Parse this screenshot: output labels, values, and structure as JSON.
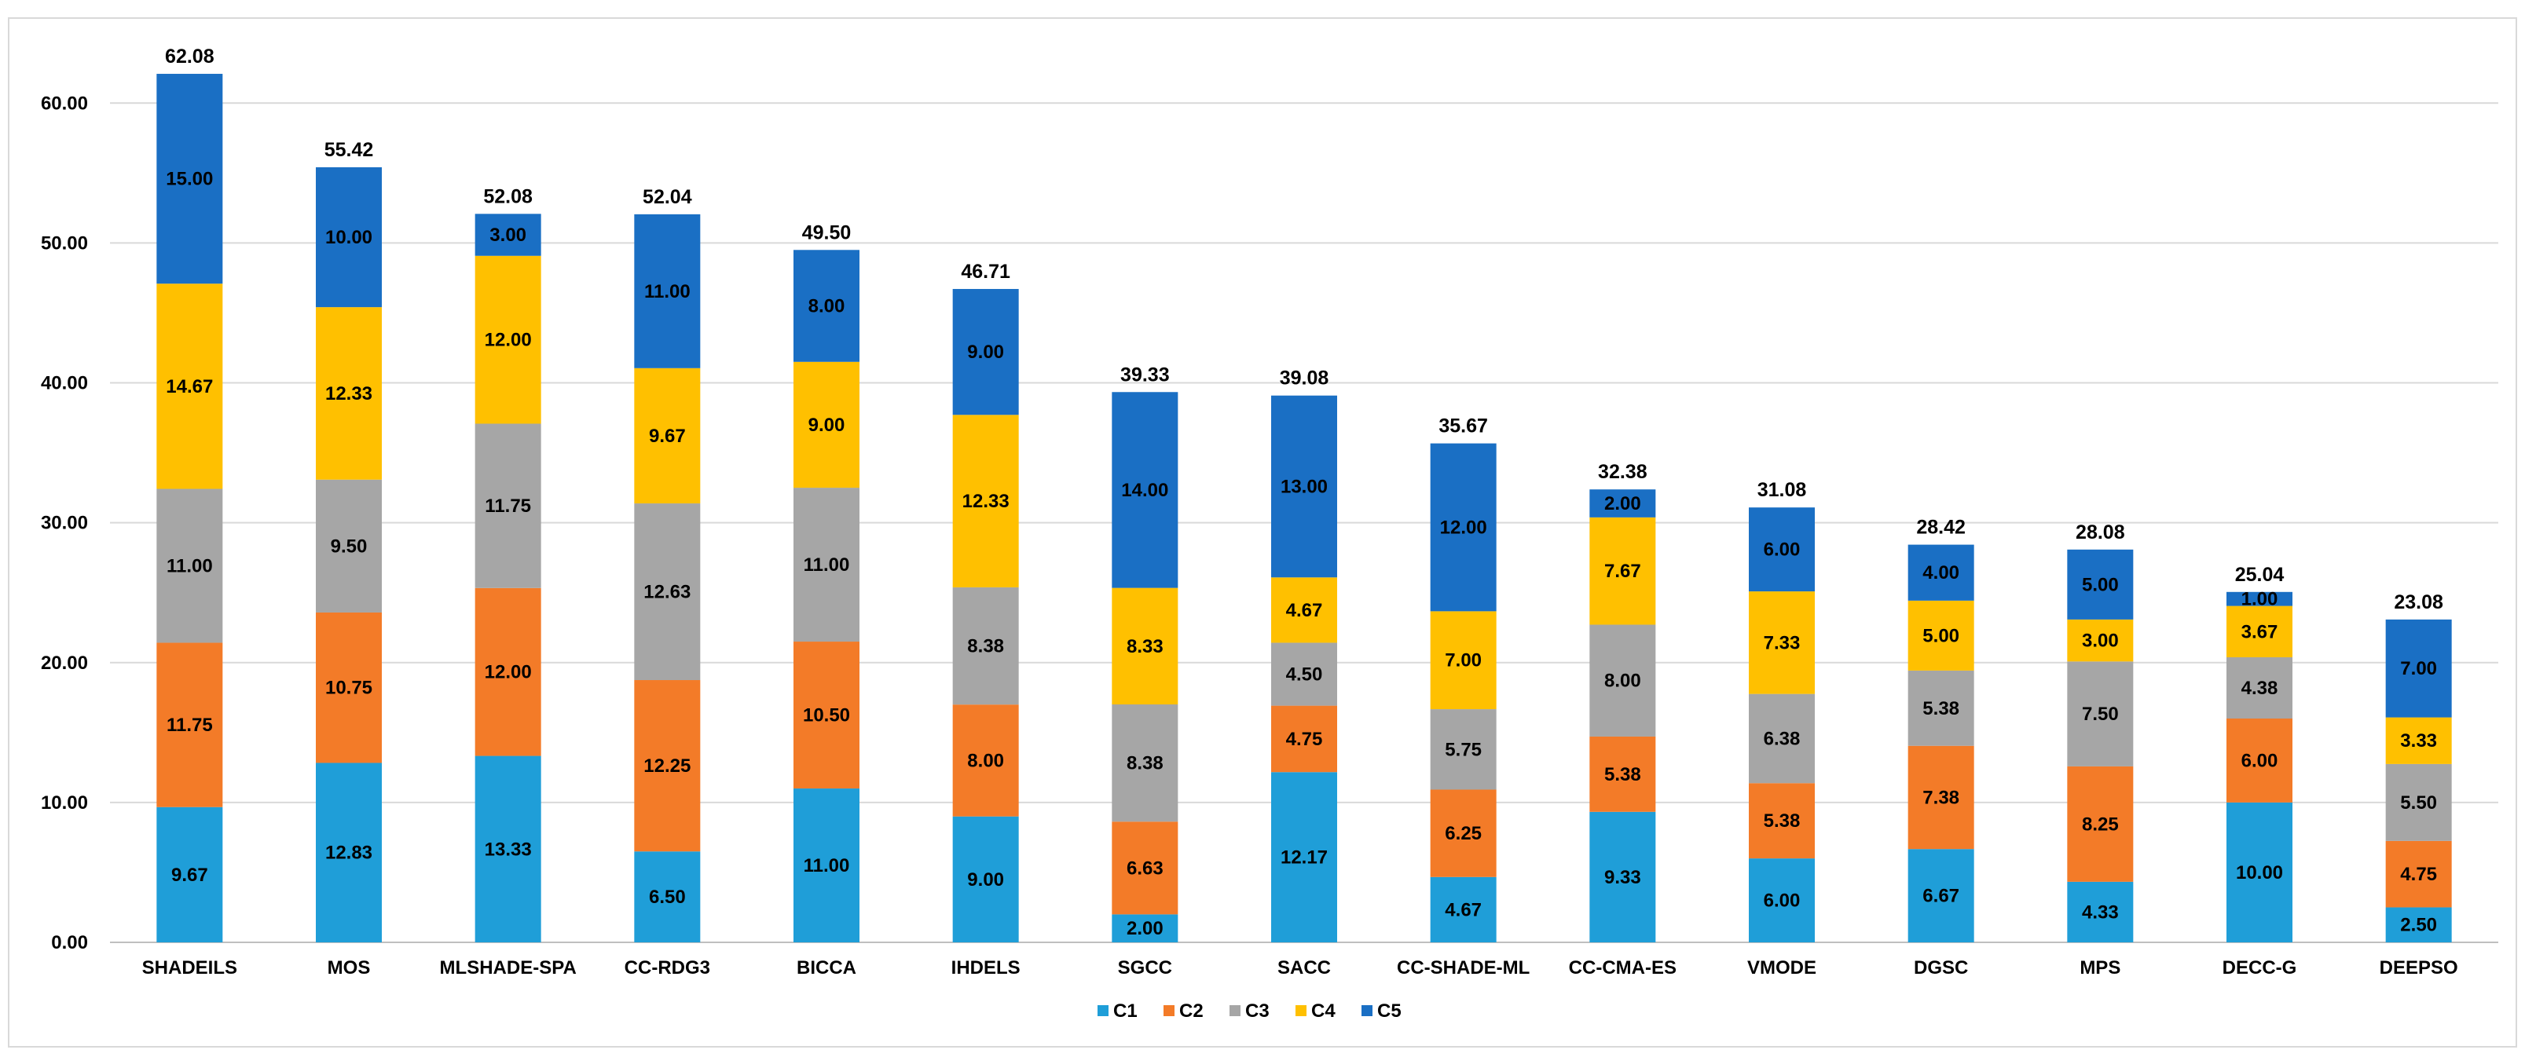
{
  "chart_data": {
    "type": "bar",
    "stacked": true,
    "title": "",
    "xlabel": "",
    "ylabel": "",
    "ylim": [
      0,
      64
    ],
    "yticks": [
      0,
      10,
      20,
      30,
      40,
      50,
      60
    ],
    "ytick_labels": [
      "0.00",
      "10.00",
      "20.00",
      "30.00",
      "40.00",
      "50.00",
      "60.00"
    ],
    "grid": true,
    "legend_position": "bottom-center",
    "categories": [
      "SHADEILS",
      "MOS",
      "MLSHADE-SPA",
      "CC-RDG3",
      "BICCA",
      "IHDELS",
      "SGCC",
      "SACC",
      "CC-SHADE-ML",
      "CC-CMA-ES",
      "VMODE",
      "DGSC",
      "MPS",
      "DECC-G",
      "DEEPSO"
    ],
    "series": [
      {
        "name": "C1",
        "color": "#1f9ed8",
        "values": [
          9.67,
          12.83,
          13.33,
          6.5,
          11.0,
          9.0,
          2.0,
          12.17,
          4.67,
          9.33,
          6.0,
          6.67,
          4.33,
          10.0,
          2.5
        ],
        "labels": [
          "9.67",
          "12.83",
          "13.33",
          "6.50",
          "11.00",
          "9.00",
          "2.00",
          "12.17",
          "4.67",
          "9.33",
          "6.00",
          "6.67",
          "4.33",
          "10.00",
          "2.50"
        ]
      },
      {
        "name": "C2",
        "color": "#f37b28",
        "values": [
          11.75,
          10.75,
          12.0,
          12.25,
          10.5,
          8.0,
          6.63,
          4.75,
          6.25,
          5.38,
          5.38,
          7.38,
          8.25,
          6.0,
          4.75
        ],
        "labels": [
          "11.75",
          "10.75",
          "12.00",
          "12.25",
          "10.50",
          "8.00",
          "6.63",
          "4.75",
          "6.25",
          "5.38",
          "5.38",
          "7.38",
          "8.25",
          "6.00",
          "4.75"
        ]
      },
      {
        "name": "C3",
        "color": "#a6a6a6",
        "values": [
          11.0,
          9.5,
          11.75,
          12.63,
          11.0,
          8.38,
          8.38,
          4.5,
          5.75,
          8.0,
          6.38,
          5.38,
          7.5,
          4.38,
          5.5
        ],
        "labels": [
          "11.00",
          "9.50",
          "11.75",
          "12.63",
          "11.00",
          "8.38",
          "8.38",
          "4.50",
          "5.75",
          "8.00",
          "6.38",
          "5.38",
          "7.50",
          "4.38",
          "5.50"
        ]
      },
      {
        "name": "C4",
        "color": "#ffc000",
        "values": [
          14.67,
          12.33,
          12.0,
          9.67,
          9.0,
          12.33,
          8.33,
          4.67,
          7.0,
          7.67,
          7.33,
          5.0,
          3.0,
          3.67,
          3.33
        ],
        "labels": [
          "14.67",
          "12.33",
          "12.00",
          "9.67",
          "9.00",
          "12.33",
          "8.33",
          "4.67",
          "7.00",
          "7.67",
          "7.33",
          "5.00",
          "3.00",
          "3.67",
          "3.33"
        ]
      },
      {
        "name": "C5",
        "color": "#1a6fc4",
        "values": [
          15.0,
          10.0,
          3.0,
          11.0,
          8.0,
          9.0,
          14.0,
          13.0,
          12.0,
          2.0,
          6.0,
          4.0,
          5.0,
          1.0,
          7.0
        ],
        "labels": [
          "15.00",
          "10.00",
          "3.00",
          "11.00",
          "8.00",
          "9.00",
          "14.00",
          "13.00",
          "12.00",
          "2.00",
          "6.00",
          "4.00",
          "5.00",
          "1.00",
          "7.00"
        ]
      }
    ],
    "totals": [
      "62.08",
      "55.42",
      "52.08",
      "52.04",
      "49.50",
      "46.71",
      "39.33",
      "39.08",
      "35.67",
      "32.38",
      "31.08",
      "28.42",
      "28.08",
      "25.04",
      "23.08"
    ]
  }
}
